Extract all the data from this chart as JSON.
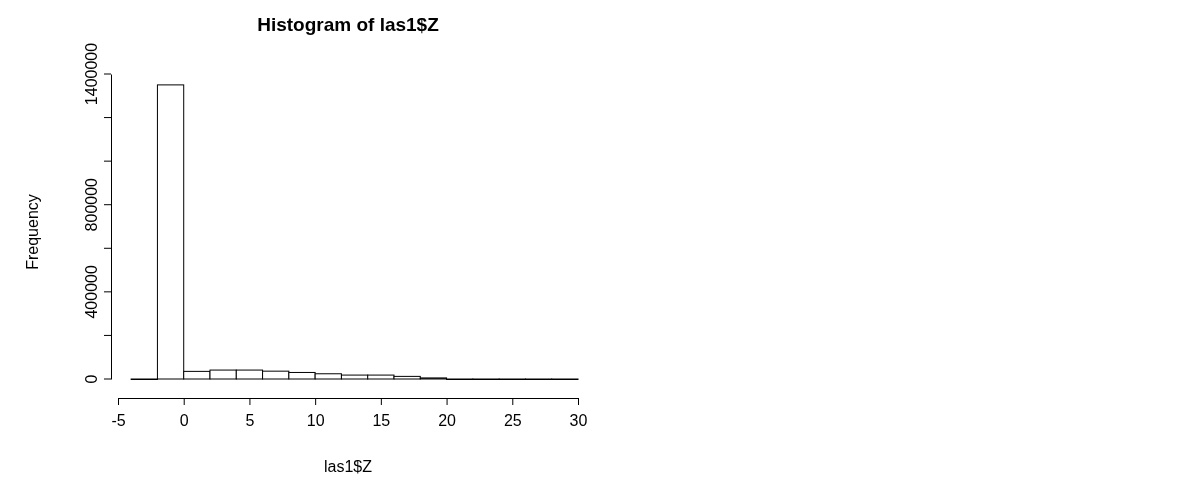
{
  "chart_data": {
    "type": "histogram",
    "title": "Histogram of las1$Z",
    "xlabel": "las1$Z",
    "ylabel": "Frequency",
    "bins": [
      -4,
      -2,
      0,
      2,
      4,
      6,
      8,
      10,
      12,
      14,
      16,
      18,
      20,
      22,
      24,
      26,
      28,
      30
    ],
    "values": [
      0,
      1350000,
      35000,
      41000,
      41000,
      36000,
      30000,
      24000,
      18000,
      18000,
      12000,
      5000,
      0,
      0,
      0,
      0,
      0
    ],
    "color": "#ffffff",
    "xlim": [
      -5,
      30
    ],
    "xticks": [
      -5,
      0,
      5,
      10,
      15,
      20,
      25,
      30
    ],
    "ylim": [
      0,
      1400000
    ],
    "yticks": [
      0,
      {
        "value": 200000,
        "label": null
      },
      400000,
      {
        "value": 600000,
        "label": null
      },
      800000,
      {
        "value": 1000000,
        "label": null
      },
      {
        "value": 1200000,
        "label": null
      },
      1400000
    ],
    "grid": false
  }
}
